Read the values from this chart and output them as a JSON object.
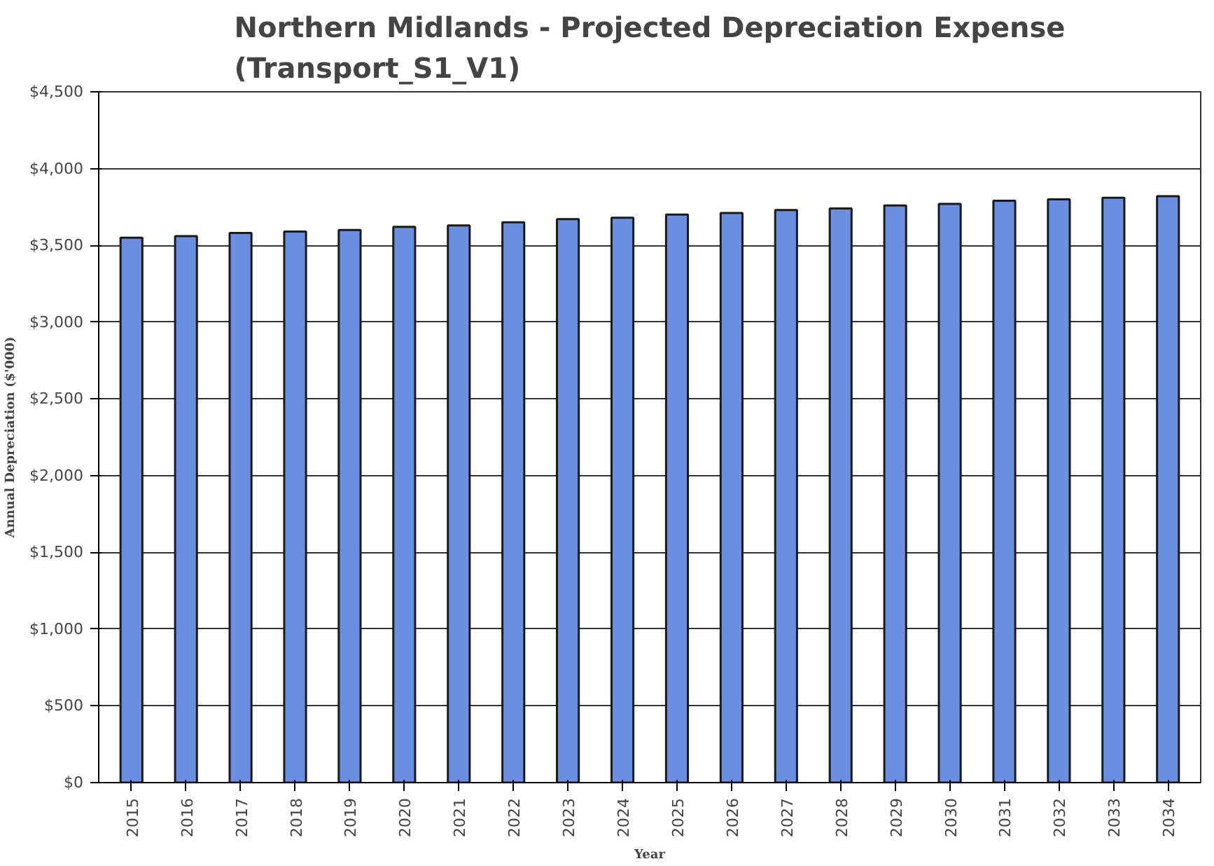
{
  "chart_data": {
    "type": "bar",
    "title": "Northern Midlands - Projected Depreciation Expense\n(Transport_S1_V1)",
    "xlabel": "Year",
    "ylabel": "Annual Depreciation ($'000)",
    "categories": [
      "2015",
      "2016",
      "2017",
      "2018",
      "2019",
      "2020",
      "2021",
      "2022",
      "2023",
      "2024",
      "2025",
      "2026",
      "2027",
      "2028",
      "2029",
      "2030",
      "2031",
      "2032",
      "2033",
      "2034"
    ],
    "values": [
      3550,
      3560,
      3580,
      3590,
      3600,
      3620,
      3630,
      3650,
      3670,
      3680,
      3700,
      3710,
      3730,
      3740,
      3760,
      3770,
      3790,
      3800,
      3810,
      3820
    ],
    "color": "#6a8fe0",
    "ylim": [
      0,
      4500
    ],
    "yticks": [
      {
        "value": 0,
        "label": "$0"
      },
      {
        "value": 500,
        "label": "$500"
      },
      {
        "value": 1000,
        "label": "$1,000"
      },
      {
        "value": 1500,
        "label": "$1,500"
      },
      {
        "value": 2000,
        "label": "$2,000"
      },
      {
        "value": 2500,
        "label": "$2,500"
      },
      {
        "value": 3000,
        "label": "$3,000"
      },
      {
        "value": 3500,
        "label": "$3,500"
      },
      {
        "value": 4000,
        "label": "$4,000"
      },
      {
        "value": 4500,
        "label": "$4,500"
      }
    ],
    "grid": "y"
  }
}
